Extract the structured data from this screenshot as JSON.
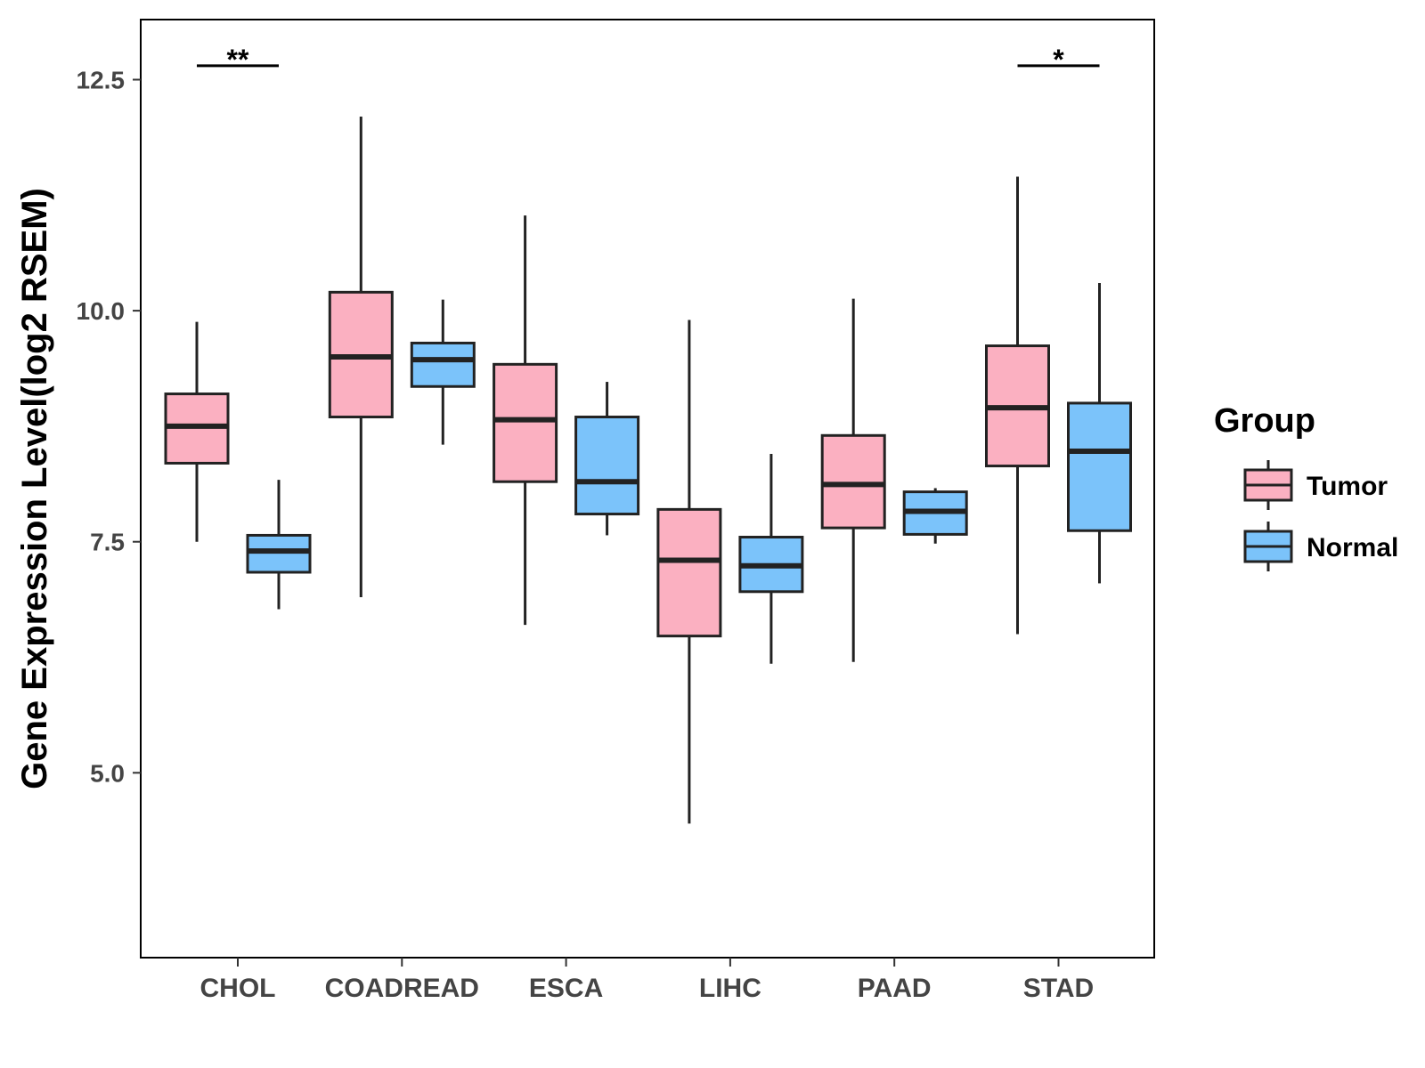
{
  "chart_data": {
    "type": "boxplot",
    "ylabel": "Gene Expression Level(log2 RSEM)",
    "xlabel": "",
    "ylim": [
      3.0,
      13.15
    ],
    "yticks": [
      5.0,
      7.5,
      10.0,
      12.5
    ],
    "ytick_labels": [
      "5.0",
      "7.5",
      "10.0",
      "12.5"
    ],
    "categories": [
      "CHOL",
      "COADREAD",
      "ESCA",
      "LIHC",
      "PAAD",
      "STAD"
    ],
    "series": [
      {
        "name": "Tumor",
        "color": "#FBB0C1",
        "boxes": [
          {
            "min": 7.5,
            "q1": 8.35,
            "median": 8.75,
            "q3": 9.1,
            "max": 9.88
          },
          {
            "min": 6.9,
            "q1": 8.85,
            "median": 9.5,
            "q3": 10.2,
            "max": 12.1
          },
          {
            "min": 6.6,
            "q1": 8.15,
            "median": 8.82,
            "q3": 9.42,
            "max": 11.03
          },
          {
            "min": 4.45,
            "q1": 6.48,
            "median": 7.3,
            "q3": 7.85,
            "max": 9.9
          },
          {
            "min": 6.2,
            "q1": 7.65,
            "median": 8.12,
            "q3": 8.65,
            "max": 10.13
          },
          {
            "min": 6.5,
            "q1": 8.32,
            "median": 8.95,
            "q3": 9.62,
            "max": 11.45
          }
        ]
      },
      {
        "name": "Normal",
        "color": "#7BC3FA",
        "boxes": [
          {
            "min": 6.77,
            "q1": 7.17,
            "median": 7.4,
            "q3": 7.57,
            "max": 8.17
          },
          {
            "min": 8.55,
            "q1": 9.18,
            "median": 9.47,
            "q3": 9.65,
            "max": 10.12
          },
          {
            "min": 7.57,
            "q1": 7.8,
            "median": 8.15,
            "q3": 8.85,
            "max": 9.23
          },
          {
            "min": 6.18,
            "q1": 6.96,
            "median": 7.24,
            "q3": 7.55,
            "max": 8.45
          },
          {
            "min": 7.48,
            "q1": 7.58,
            "median": 7.83,
            "q3": 8.04,
            "max": 8.08
          },
          {
            "min": 7.05,
            "q1": 7.62,
            "median": 8.48,
            "q3": 9.0,
            "max": 10.3
          }
        ]
      }
    ],
    "significance": [
      {
        "category": "CHOL",
        "label": "**",
        "y": 12.65
      },
      {
        "category": "STAD",
        "label": "*",
        "y": 12.65
      }
    ],
    "legend": {
      "title": "Group",
      "position": "right",
      "entries": [
        "Tumor",
        "Normal"
      ]
    },
    "style": {
      "border_color": "#000000",
      "line_color": "#222222",
      "tick_label_color": "#444444"
    }
  }
}
